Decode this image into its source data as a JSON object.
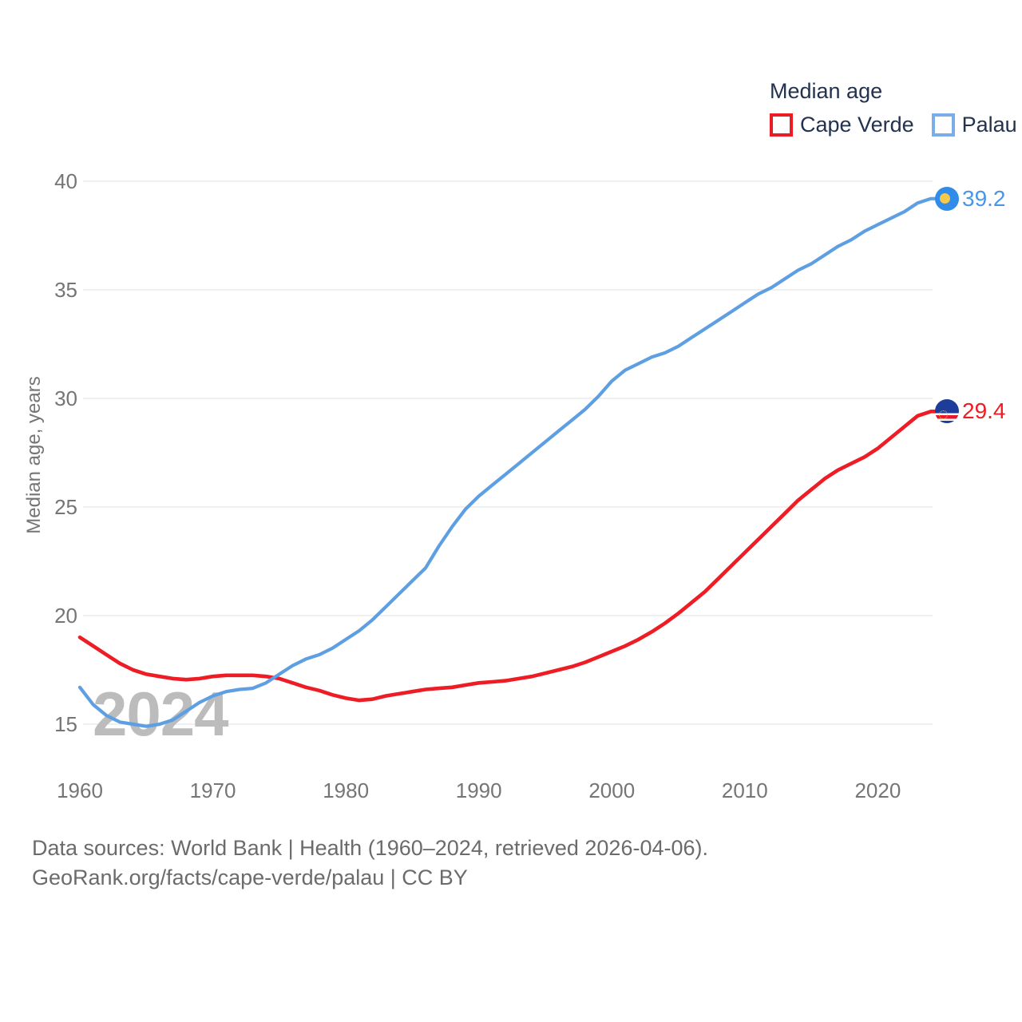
{
  "legend": {
    "title": "Median age",
    "items": [
      {
        "label": "Cape Verde",
        "swatch_color": "#ed1c24"
      },
      {
        "label": "Palau",
        "swatch_color": "#79aee9"
      }
    ]
  },
  "watermark": "2024",
  "y_axis": {
    "title": "Median age, years",
    "ticks": [
      15,
      20,
      25,
      30,
      35,
      40
    ]
  },
  "x_axis": {
    "ticks": [
      1960,
      1970,
      1980,
      1990,
      2000,
      2010,
      2020
    ]
  },
  "end_labels": [
    {
      "series": "Palau",
      "value": "39.2",
      "color": "#4a95e8"
    },
    {
      "series": "Cape Verde",
      "value": "29.4",
      "color": "#ee1c24"
    }
  ],
  "markers": [
    {
      "series": "Palau",
      "flag": {
        "bg": "#2f8ce8",
        "moon": "#f7c94a"
      }
    },
    {
      "series": "Cape Verde",
      "flag": {
        "bg": "#1e3d9b",
        "stripe_red": "#e8192c",
        "stripe_white": "#ffffff",
        "stars": "#f7c94a"
      }
    }
  ],
  "footer": {
    "line1": "Data sources: World Bank | Health (1960–2024, retrieved 2026-04-06).",
    "line2": "GeoRank.org/facts/cape-verde/palau | CC BY"
  },
  "chart_data": {
    "type": "line",
    "title": "Median age",
    "xlabel": "",
    "ylabel": "Median age, years",
    "xlim": [
      1960,
      2024
    ],
    "ylim": [
      15,
      40
    ],
    "grid": "horizontal",
    "legend_position": "top-right",
    "x": [
      1960,
      1961,
      1962,
      1963,
      1964,
      1965,
      1966,
      1967,
      1968,
      1969,
      1970,
      1971,
      1972,
      1973,
      1974,
      1975,
      1976,
      1977,
      1978,
      1979,
      1980,
      1981,
      1982,
      1983,
      1984,
      1985,
      1986,
      1987,
      1988,
      1989,
      1990,
      1991,
      1992,
      1993,
      1994,
      1995,
      1996,
      1997,
      1998,
      1999,
      2000,
      2001,
      2002,
      2003,
      2004,
      2005,
      2006,
      2007,
      2008,
      2009,
      2010,
      2011,
      2012,
      2013,
      2014,
      2015,
      2016,
      2017,
      2018,
      2019,
      2020,
      2021,
      2022,
      2023,
      2024
    ],
    "series": [
      {
        "name": "Cape Verde",
        "color": "#ee1c24",
        "stroke_width": 4.6,
        "end_value": 29.4,
        "values": [
          19.0,
          18.6,
          18.2,
          17.8,
          17.5,
          17.3,
          17.2,
          17.1,
          17.05,
          17.1,
          17.2,
          17.25,
          17.25,
          17.25,
          17.2,
          17.1,
          16.9,
          16.7,
          16.55,
          16.35,
          16.2,
          16.1,
          16.15,
          16.3,
          16.4,
          16.5,
          16.6,
          16.65,
          16.7,
          16.8,
          16.9,
          16.95,
          17.0,
          17.1,
          17.2,
          17.35,
          17.5,
          17.65,
          17.85,
          18.1,
          18.35,
          18.6,
          18.9,
          19.25,
          19.65,
          20.1,
          20.6,
          21.1,
          21.7,
          22.3,
          22.9,
          23.5,
          24.1,
          24.7,
          25.3,
          25.8,
          26.3,
          26.7,
          27.0,
          27.3,
          27.7,
          28.2,
          28.7,
          29.2,
          29.4
        ]
      },
      {
        "name": "Palau",
        "color": "#5d9fe2",
        "stroke_width": 4.2,
        "end_value": 39.2,
        "values": [
          16.7,
          15.9,
          15.4,
          15.1,
          15.0,
          14.9,
          15.0,
          15.2,
          15.6,
          16.0,
          16.3,
          16.5,
          16.6,
          16.65,
          16.9,
          17.3,
          17.7,
          18.0,
          18.2,
          18.5,
          18.9,
          19.3,
          19.8,
          20.4,
          21.0,
          21.6,
          22.2,
          23.2,
          24.1,
          24.9,
          25.5,
          26.0,
          26.5,
          27.0,
          27.5,
          28.0,
          28.5,
          29.0,
          29.5,
          30.1,
          30.8,
          31.3,
          31.6,
          31.9,
          32.1,
          32.4,
          32.8,
          33.2,
          33.6,
          34.0,
          34.4,
          34.8,
          35.1,
          35.5,
          35.9,
          36.2,
          36.6,
          37.0,
          37.3,
          37.7,
          38.0,
          38.3,
          38.6,
          39.0,
          39.2
        ]
      }
    ]
  }
}
